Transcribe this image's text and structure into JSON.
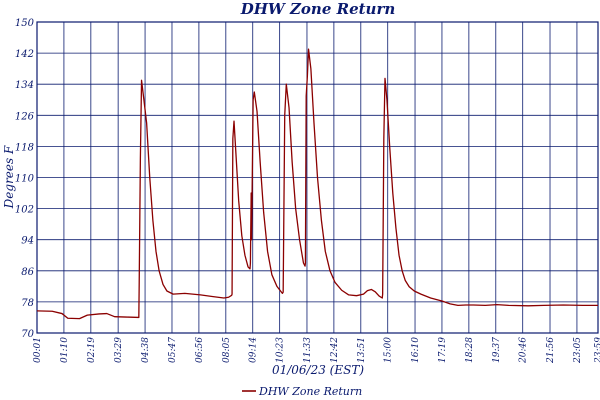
{
  "chart_data": {
    "type": "line",
    "title": "DHW Zone Return",
    "xlabel": "01/06/23 (EST)",
    "ylabel": "Degrees F",
    "ylim": [
      70,
      150
    ],
    "yticks": [
      70,
      78,
      86,
      94,
      102,
      110,
      118,
      126,
      134,
      142,
      150
    ],
    "x_tick_labels": [
      "00:01",
      "01:10",
      "02:19",
      "03:29",
      "04:38",
      "05:47",
      "06:56",
      "08:05",
      "09:14",
      "10:23",
      "11:33",
      "12:42",
      "13:51",
      "15:00",
      "16:10",
      "17:19",
      "18:28",
      "19:37",
      "20:46",
      "21:56",
      "23:05",
      "23:59"
    ],
    "x_tick_minutes": [
      1,
      70,
      139,
      209,
      278,
      347,
      416,
      485,
      554,
      623,
      693,
      762,
      831,
      900,
      970,
      1039,
      1108,
      1177,
      1246,
      1316,
      1385,
      1439
    ],
    "xlim": [
      1,
      1439
    ],
    "grid": true,
    "legend_position": "bottom",
    "colors": {
      "series": "#8b0000",
      "grid": "#0a1a6e",
      "text": "#0a1a6e"
    },
    "series": [
      {
        "name": "DHW Zone Return",
        "points": [
          [
            1,
            75.7
          ],
          [
            40,
            75.6
          ],
          [
            65,
            75.0
          ],
          [
            80,
            73.8
          ],
          [
            110,
            73.7
          ],
          [
            130,
            74.6
          ],
          [
            160,
            74.9
          ],
          [
            180,
            75.0
          ],
          [
            200,
            74.2
          ],
          [
            230,
            74.1
          ],
          [
            262,
            74.0
          ],
          [
            263,
            83.0
          ],
          [
            266,
            115.0
          ],
          [
            269,
            135.0
          ],
          [
            275,
            130.0
          ],
          [
            282,
            124.0
          ],
          [
            290,
            110.0
          ],
          [
            298,
            99.0
          ],
          [
            306,
            91.0
          ],
          [
            314,
            86.0
          ],
          [
            324,
            82.5
          ],
          [
            334,
            80.8
          ],
          [
            350,
            80.0
          ],
          [
            380,
            80.2
          ],
          [
            420,
            79.8
          ],
          [
            450,
            79.4
          ],
          [
            480,
            79.0
          ],
          [
            492,
            79.2
          ],
          [
            500,
            79.7
          ],
          [
            501,
            80.0
          ],
          [
            503,
            120.0
          ],
          [
            506,
            124.5
          ],
          [
            511,
            116.0
          ],
          [
            518,
            104.0
          ],
          [
            526,
            95.0
          ],
          [
            534,
            90.0
          ],
          [
            542,
            87.0
          ],
          [
            547,
            86.5
          ],
          [
            548,
            88.0
          ],
          [
            550,
            106.0
          ],
          [
            551,
            94.0
          ],
          [
            555,
            130.0
          ],
          [
            558,
            132.0
          ],
          [
            565,
            127.0
          ],
          [
            573,
            114.0
          ],
          [
            582,
            101.0
          ],
          [
            592,
            91.0
          ],
          [
            603,
            85.0
          ],
          [
            616,
            82.0
          ],
          [
            630,
            80.2
          ],
          [
            632,
            80.5
          ],
          [
            636,
            126.0
          ],
          [
            640,
            134.0
          ],
          [
            647,
            128.0
          ],
          [
            655,
            114.0
          ],
          [
            664,
            102.0
          ],
          [
            674,
            94.0
          ],
          [
            684,
            88.0
          ],
          [
            688,
            87.2
          ],
          [
            689,
            88.0
          ],
          [
            691,
            131.0
          ],
          [
            694,
            136.0
          ],
          [
            697,
            143.0
          ],
          [
            703,
            138.0
          ],
          [
            711,
            124.0
          ],
          [
            720,
            110.0
          ],
          [
            730,
            99.0
          ],
          [
            740,
            91.0
          ],
          [
            752,
            86.0
          ],
          [
            765,
            83.0
          ],
          [
            782,
            81.0
          ],
          [
            800,
            79.8
          ],
          [
            820,
            79.6
          ],
          [
            838,
            80.0
          ],
          [
            848,
            80.9
          ],
          [
            858,
            81.2
          ],
          [
            868,
            80.6
          ],
          [
            878,
            79.5
          ],
          [
            886,
            79.0
          ],
          [
            887,
            80.0
          ],
          [
            890,
            120.0
          ],
          [
            893,
            135.5
          ],
          [
            898,
            130.0
          ],
          [
            905,
            118.0
          ],
          [
            913,
            106.0
          ],
          [
            921,
            97.0
          ],
          [
            929,
            90.0
          ],
          [
            937,
            86.0
          ],
          [
            945,
            83.5
          ],
          [
            955,
            81.9
          ],
          [
            968,
            80.8
          ],
          [
            985,
            80.0
          ],
          [
            1010,
            79.0
          ],
          [
            1040,
            78.2
          ],
          [
            1060,
            77.5
          ],
          [
            1080,
            77.1
          ],
          [
            1100,
            77.2
          ],
          [
            1120,
            77.2
          ],
          [
            1150,
            77.1
          ],
          [
            1180,
            77.3
          ],
          [
            1210,
            77.1
          ],
          [
            1260,
            77.0
          ],
          [
            1300,
            77.1
          ],
          [
            1350,
            77.2
          ],
          [
            1400,
            77.1
          ],
          [
            1439,
            77.1
          ]
        ]
      }
    ]
  }
}
